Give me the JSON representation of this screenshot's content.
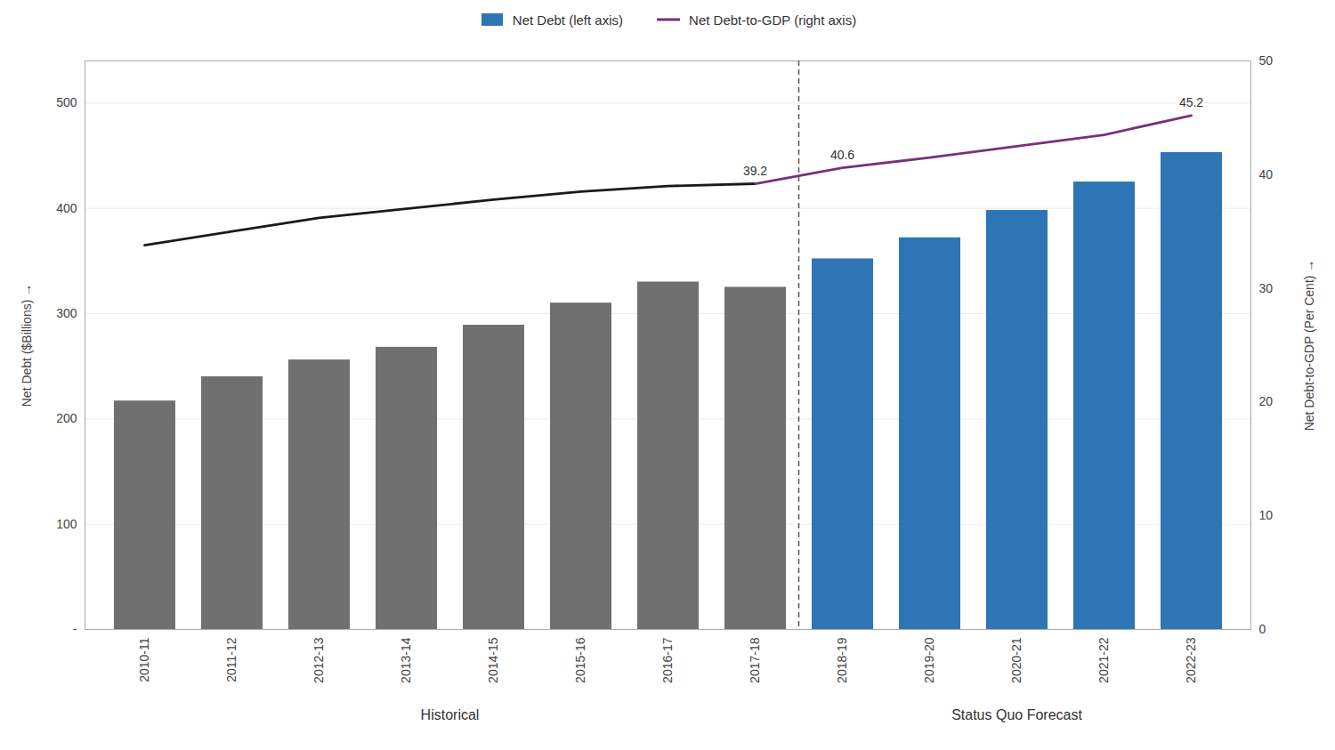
{
  "chart_data": {
    "type": "bar",
    "categories": [
      "2010-11",
      "2011-12",
      "2012-13",
      "2013-14",
      "2014-15",
      "2015-16",
      "2016-17",
      "2017-18",
      "2018-19",
      "2019-20",
      "2020-21",
      "2021-22",
      "2022-23"
    ],
    "series": [
      {
        "name": "Net Debt (left axis)",
        "type": "bar",
        "color": "#2E75B6",
        "colors": [
          "#707070",
          "#707070",
          "#707070",
          "#707070",
          "#707070",
          "#707070",
          "#707070",
          "#707070",
          "#2E75B6",
          "#2E75B6",
          "#2E75B6",
          "#2E75B6",
          "#2E75B6"
        ],
        "values": [
          217,
          240,
          256,
          268,
          289,
          310,
          330,
          325,
          352,
          372,
          398,
          425,
          453
        ]
      },
      {
        "type": "line",
        "axis": "y2",
        "color": "#1a1a1a",
        "values": [
          33.8,
          35.0,
          36.2,
          37.0,
          37.8,
          38.5,
          39.0,
          39.2,
          null,
          null,
          null,
          null,
          null
        ]
      },
      {
        "name": "Net Debt-to-GDP (right axis)",
        "type": "line",
        "axis": "y2",
        "color": "#7B2F7A",
        "values": [
          null,
          null,
          null,
          null,
          null,
          null,
          null,
          39.2,
          40.6,
          41.5,
          42.5,
          43.5,
          45.2
        ]
      }
    ],
    "ylabel": "Net Debt ($Billions)",
    "y2label": "Net Debt-to-GDP (Per Cent)",
    "ylim": [
      0,
      540
    ],
    "yticks": [
      {
        "value": 0,
        "label": "-"
      },
      100,
      200,
      300,
      400,
      500
    ],
    "y2lim": [
      0,
      50
    ],
    "y2ticks": [
      0,
      10,
      20,
      30,
      40,
      50
    ],
    "grid": true,
    "legend": "top",
    "annotations": [
      {
        "text": "39.2",
        "category": "2017-18",
        "value": 39.2,
        "axis": "y2"
      },
      {
        "text": "40.6",
        "category": "2018-19",
        "value": 40.6,
        "axis": "y2"
      },
      {
        "text": "45.2",
        "category": "2022-23",
        "value": 45.2,
        "axis": "y2"
      }
    ],
    "sections": [
      {
        "text": "Historical",
        "from": "2010-11",
        "to": "2017-18"
      },
      {
        "text": "Status Quo Forecast",
        "from": "2018-19",
        "to": "2022-23"
      }
    ]
  }
}
